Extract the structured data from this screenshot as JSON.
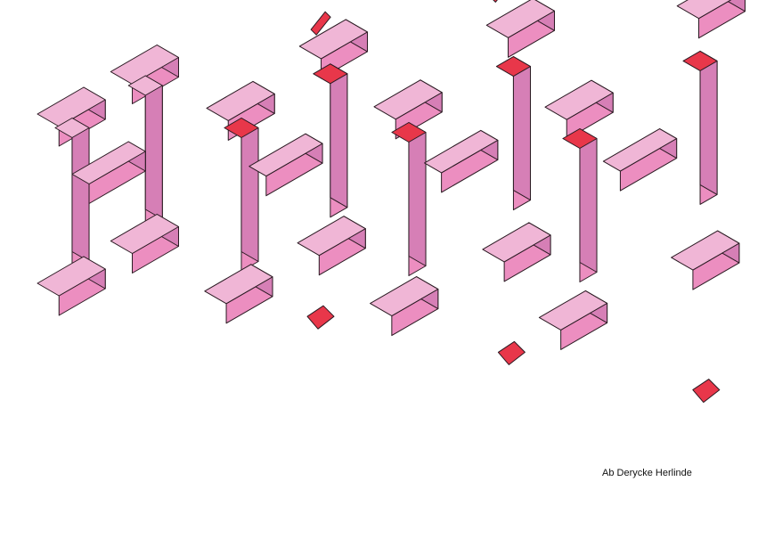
{
  "artwork": {
    "description_title": "Isometric letter H breaking apart",
    "letter_stages": 4
  },
  "credit": {
    "text": "Ab Derycke Herlinde"
  },
  "colors": {
    "top": "#f0b6d6",
    "front": "#ec8ec0",
    "side": "#d67fb6",
    "cut": "#e8374a",
    "outline": "#2a1a22",
    "background": "#ffffff"
  }
}
